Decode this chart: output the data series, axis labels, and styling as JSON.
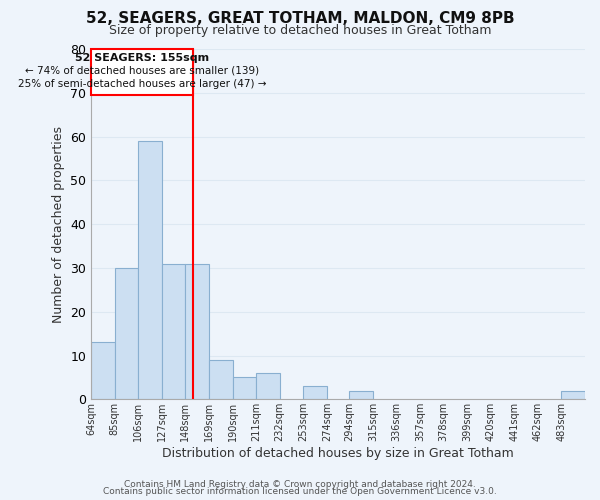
{
  "title": "52, SEAGERS, GREAT TOTHAM, MALDON, CM9 8PB",
  "subtitle": "Size of property relative to detached houses in Great Totham",
  "xlabel": "Distribution of detached houses by size in Great Totham",
  "ylabel": "Number of detached properties",
  "footer_line1": "Contains HM Land Registry data © Crown copyright and database right 2024.",
  "footer_line2": "Contains public sector information licensed under the Open Government Licence v3.0.",
  "bar_labels": [
    "64sqm",
    "85sqm",
    "106sqm",
    "127sqm",
    "148sqm",
    "169sqm",
    "190sqm",
    "211sqm",
    "232sqm",
    "253sqm",
    "274sqm",
    "294sqm",
    "315sqm",
    "336sqm",
    "357sqm",
    "378sqm",
    "399sqm",
    "420sqm",
    "441sqm",
    "462sqm",
    "483sqm"
  ],
  "bar_values": [
    13,
    30,
    59,
    31,
    31,
    9,
    5,
    6,
    0,
    3,
    0,
    2,
    0,
    0,
    0,
    0,
    0,
    0,
    0,
    0,
    2
  ],
  "bar_color": "#ccdff2",
  "bar_edge_color": "#89afd0",
  "ylim": [
    0,
    80
  ],
  "yticks": [
    0,
    10,
    20,
    30,
    40,
    50,
    60,
    70,
    80
  ],
  "property_line_x": 155,
  "property_line_label": "52 SEAGERS: 155sqm",
  "annotation_line1": "← 74% of detached houses are smaller (139)",
  "annotation_line2": "25% of semi-detached houses are larger (47) →",
  "bin_edges": [
    64,
    85,
    106,
    127,
    148,
    169,
    190,
    211,
    232,
    253,
    274,
    294,
    315,
    336,
    357,
    378,
    399,
    420,
    441,
    462,
    483,
    504
  ],
  "grid_color": "#dde8f2",
  "background_color": "#eef4fb"
}
